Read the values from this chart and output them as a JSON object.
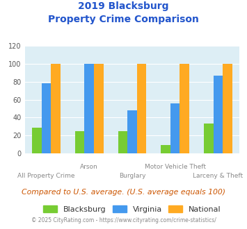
{
  "title_line1": "2019 Blacksburg",
  "title_line2": "Property Crime Comparison",
  "categories": [
    "All Property Crime",
    "Arson",
    "Burglary",
    "Motor Vehicle Theft",
    "Larceny & Theft"
  ],
  "blacksburg": [
    29,
    25,
    25,
    9,
    33
  ],
  "virginia": [
    78,
    100,
    48,
    56,
    87
  ],
  "national": [
    100,
    100,
    100,
    100,
    100
  ],
  "color_blacksburg": "#77cc33",
  "color_virginia": "#4499ee",
  "color_national": "#ffaa22",
  "ylim": [
    0,
    120
  ],
  "yticks": [
    0,
    20,
    40,
    60,
    80,
    100,
    120
  ],
  "bg_color": "#ddeef5",
  "subtitle_text": "Compared to U.S. average. (U.S. average equals 100)",
  "footer_text": "© 2025 CityRating.com - https://www.cityrating.com/crime-statistics/",
  "title_color": "#2255cc",
  "subtitle_color": "#cc5500",
  "footer_color": "#888888",
  "xlabel_color": "#888888",
  "legend_labels": [
    "Blacksburg",
    "Virginia",
    "National"
  ],
  "bar_width": 0.22
}
